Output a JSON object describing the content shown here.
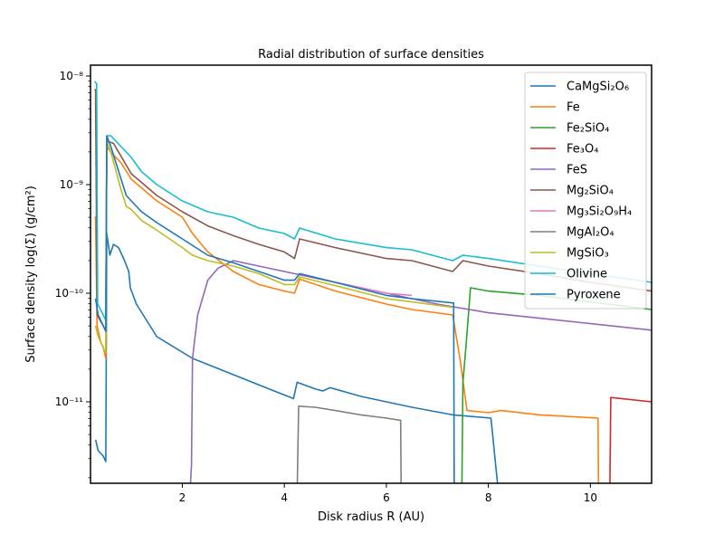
{
  "chart_data": {
    "type": "line",
    "title": "Radial distribution of surface densities",
    "xlabel": "Disk radius R (AU)",
    "ylabel": "Surface density log(Σ) (g/cm²)",
    "xlim": [
      0.2,
      11.2
    ],
    "ylim_log10": [
      -11.75,
      -7.9
    ],
    "y_scale": "log",
    "grid": false,
    "legend_position": "top-right",
    "x_ticks": [
      2,
      4,
      6,
      8,
      10
    ],
    "x_tick_labels": [
      "2",
      "4",
      "6",
      "8",
      "10"
    ],
    "y_ticks": [
      -8,
      -9,
      -10,
      -11
    ],
    "y_tick_labels": [
      "10⁻⁸",
      "10⁻⁹",
      "10⁻¹⁰",
      "10⁻¹¹"
    ],
    "series": [
      {
        "name": "CaMgSi₂O₆",
        "color": "#1f77b4",
        "points": [
          [
            0.3,
            -11.35
          ],
          [
            0.35,
            -11.45
          ],
          [
            0.45,
            -11.5
          ],
          [
            0.5,
            -11.55
          ],
          [
            0.52,
            -9.45
          ],
          [
            0.58,
            -9.65
          ],
          [
            0.65,
            -9.55
          ],
          [
            0.75,
            -9.58
          ],
          [
            0.85,
            -9.68
          ],
          [
            0.95,
            -9.8
          ],
          [
            0.98,
            -9.95
          ],
          [
            1.1,
            -10.1
          ],
          [
            1.5,
            -10.4
          ],
          [
            2.2,
            -10.6
          ],
          [
            3.0,
            -10.75
          ],
          [
            3.8,
            -10.9
          ],
          [
            4.18,
            -10.97
          ],
          [
            4.25,
            -10.82
          ],
          [
            4.6,
            -10.88
          ],
          [
            4.75,
            -10.9
          ],
          [
            4.9,
            -10.87
          ],
          [
            5.5,
            -10.95
          ],
          [
            6.5,
            -11.05
          ],
          [
            7.3,
            -11.12
          ],
          [
            8.05,
            -11.15
          ],
          [
            8.2,
            -11.85
          ]
        ]
      },
      {
        "name": "Fe",
        "color": "#ff7f0e",
        "points": [
          [
            0.28,
            -9.3
          ],
          [
            0.3,
            -9.3
          ],
          [
            0.33,
            -10.3
          ],
          [
            0.4,
            -10.45
          ],
          [
            0.45,
            -10.5
          ],
          [
            0.5,
            -10.6
          ],
          [
            0.52,
            -8.65
          ],
          [
            0.6,
            -8.7
          ],
          [
            0.8,
            -8.8
          ],
          [
            1.0,
            -8.95
          ],
          [
            1.5,
            -9.15
          ],
          [
            2.0,
            -9.3
          ],
          [
            2.2,
            -9.45
          ],
          [
            2.5,
            -9.62
          ],
          [
            3.0,
            -9.8
          ],
          [
            3.5,
            -9.92
          ],
          [
            4.0,
            -9.98
          ],
          [
            4.2,
            -10.0
          ],
          [
            4.3,
            -9.87
          ],
          [
            5.0,
            -9.98
          ],
          [
            6.0,
            -10.1
          ],
          [
            6.5,
            -10.15
          ],
          [
            7.3,
            -10.2
          ],
          [
            7.45,
            -10.62
          ],
          [
            7.58,
            -11.08
          ],
          [
            8.0,
            -11.1
          ],
          [
            8.25,
            -11.08
          ],
          [
            9.0,
            -11.12
          ],
          [
            10.15,
            -11.15
          ],
          [
            10.16,
            -11.85
          ]
        ]
      },
      {
        "name": "Fe₂SiO₄",
        "color": "#2ca02c",
        "points": [
          [
            7.48,
            -11.85
          ],
          [
            7.5,
            -10.82
          ],
          [
            7.55,
            -10.55
          ],
          [
            7.65,
            -9.95
          ],
          [
            8.0,
            -9.98
          ],
          [
            9.0,
            -10.02
          ],
          [
            10.0,
            -10.08
          ],
          [
            11.2,
            -10.15
          ]
        ]
      },
      {
        "name": "Fe₃O₄",
        "color": "#d62728",
        "points": [
          [
            10.38,
            -11.85
          ],
          [
            10.4,
            -10.96
          ],
          [
            11.2,
            -11.0
          ]
        ]
      },
      {
        "name": "FeS",
        "color": "#9467bd",
        "points": [
          [
            2.15,
            -11.85
          ],
          [
            2.18,
            -11.58
          ],
          [
            2.2,
            -10.6
          ],
          [
            2.3,
            -10.2
          ],
          [
            2.5,
            -9.88
          ],
          [
            2.7,
            -9.77
          ],
          [
            3.0,
            -9.7
          ],
          [
            3.5,
            -9.75
          ],
          [
            4.0,
            -9.8
          ],
          [
            5.0,
            -9.9
          ],
          [
            6.0,
            -10.0
          ],
          [
            7.0,
            -10.1
          ],
          [
            8.0,
            -10.18
          ],
          [
            9.0,
            -10.23
          ],
          [
            10.0,
            -10.28
          ],
          [
            11.2,
            -10.34
          ]
        ]
      },
      {
        "name": "Mg₂SiO₄",
        "color": "#8c564b",
        "points": [
          [
            0.28,
            -8.12
          ],
          [
            0.3,
            -8.13
          ],
          [
            0.33,
            -10.2
          ],
          [
            0.45,
            -10.3
          ],
          [
            0.5,
            -10.35
          ],
          [
            0.52,
            -8.6
          ],
          [
            0.65,
            -8.62
          ],
          [
            1.0,
            -8.9
          ],
          [
            1.5,
            -9.1
          ],
          [
            2.0,
            -9.25
          ],
          [
            2.5,
            -9.38
          ],
          [
            3.0,
            -9.47
          ],
          [
            3.5,
            -9.55
          ],
          [
            4.0,
            -9.62
          ],
          [
            4.2,
            -9.68
          ],
          [
            4.3,
            -9.5
          ],
          [
            5.0,
            -9.58
          ],
          [
            6.0,
            -9.68
          ],
          [
            6.5,
            -9.7
          ],
          [
            7.3,
            -9.8
          ],
          [
            7.5,
            -9.7
          ],
          [
            8.0,
            -9.75
          ],
          [
            9.0,
            -9.82
          ],
          [
            10.0,
            -9.9
          ],
          [
            11.2,
            -9.98
          ]
        ]
      },
      {
        "name": "Mg₃Si₂O₉H₄",
        "color": "#e377c2",
        "points": [
          [
            4.3,
            -9.82
          ],
          [
            5.0,
            -9.9
          ],
          [
            6.0,
            -10.0
          ],
          [
            6.5,
            -10.02
          ]
        ]
      },
      {
        "name": "MgAl₂O₄",
        "color": "#7f7f7f",
        "points": [
          [
            4.25,
            -11.85
          ],
          [
            4.28,
            -11.04
          ],
          [
            4.6,
            -11.05
          ],
          [
            5.0,
            -11.08
          ],
          [
            5.5,
            -11.12
          ],
          [
            6.0,
            -11.15
          ],
          [
            6.28,
            -11.17
          ],
          [
            6.29,
            -11.85
          ]
        ]
      },
      {
        "name": "MgSiO₃",
        "color": "#bcbd22",
        "points": [
          [
            0.3,
            -10.3
          ],
          [
            0.35,
            -10.4
          ],
          [
            0.45,
            -10.5
          ],
          [
            0.5,
            -10.55
          ],
          [
            0.52,
            -8.6
          ],
          [
            0.6,
            -8.7
          ],
          [
            0.8,
            -9.05
          ],
          [
            0.9,
            -9.2
          ],
          [
            1.0,
            -9.23
          ],
          [
            1.2,
            -9.33
          ],
          [
            1.5,
            -9.42
          ],
          [
            2.0,
            -9.58
          ],
          [
            2.2,
            -9.65
          ],
          [
            2.5,
            -9.7
          ],
          [
            3.0,
            -9.75
          ],
          [
            3.5,
            -9.82
          ],
          [
            4.0,
            -9.92
          ],
          [
            4.2,
            -9.92
          ],
          [
            4.3,
            -9.85
          ],
          [
            5.0,
            -9.93
          ],
          [
            6.0,
            -10.05
          ],
          [
            6.5,
            -10.08
          ],
          [
            7.3,
            -10.13
          ]
        ]
      },
      {
        "name": "Olivine",
        "color": "#17becf",
        "points": [
          [
            0.28,
            -8.05
          ],
          [
            0.32,
            -8.07
          ],
          [
            0.34,
            -10.1
          ],
          [
            0.45,
            -10.2
          ],
          [
            0.5,
            -10.25
          ],
          [
            0.52,
            -8.55
          ],
          [
            0.6,
            -8.55
          ],
          [
            0.8,
            -8.65
          ],
          [
            1.0,
            -8.75
          ],
          [
            1.2,
            -8.88
          ],
          [
            1.5,
            -9.0
          ],
          [
            2.0,
            -9.15
          ],
          [
            2.5,
            -9.25
          ],
          [
            3.0,
            -9.3
          ],
          [
            3.5,
            -9.4
          ],
          [
            4.0,
            -9.45
          ],
          [
            4.2,
            -9.5
          ],
          [
            4.3,
            -9.4
          ],
          [
            5.0,
            -9.5
          ],
          [
            6.0,
            -9.58
          ],
          [
            6.5,
            -9.6
          ],
          [
            7.3,
            -9.7
          ],
          [
            7.5,
            -9.65
          ],
          [
            8.0,
            -9.68
          ],
          [
            9.0,
            -9.75
          ],
          [
            10.0,
            -9.82
          ],
          [
            11.2,
            -9.9
          ]
        ]
      },
      {
        "name": "Pyroxene",
        "color": "#1f77b4",
        "points": [
          [
            0.3,
            -10.05
          ],
          [
            0.35,
            -10.2
          ],
          [
            0.45,
            -10.3
          ],
          [
            0.5,
            -10.35
          ],
          [
            0.52,
            -8.55
          ],
          [
            0.6,
            -8.65
          ],
          [
            0.8,
            -8.95
          ],
          [
            0.9,
            -9.1
          ],
          [
            1.0,
            -9.15
          ],
          [
            1.2,
            -9.25
          ],
          [
            1.5,
            -9.35
          ],
          [
            2.0,
            -9.5
          ],
          [
            2.5,
            -9.65
          ],
          [
            3.0,
            -9.72
          ],
          [
            3.5,
            -9.8
          ],
          [
            4.0,
            -9.88
          ],
          [
            4.2,
            -9.88
          ],
          [
            4.3,
            -9.82
          ],
          [
            5.0,
            -9.9
          ],
          [
            6.0,
            -10.02
          ],
          [
            6.5,
            -10.05
          ],
          [
            7.32,
            -10.09
          ],
          [
            7.33,
            -11.85
          ]
        ]
      }
    ]
  }
}
